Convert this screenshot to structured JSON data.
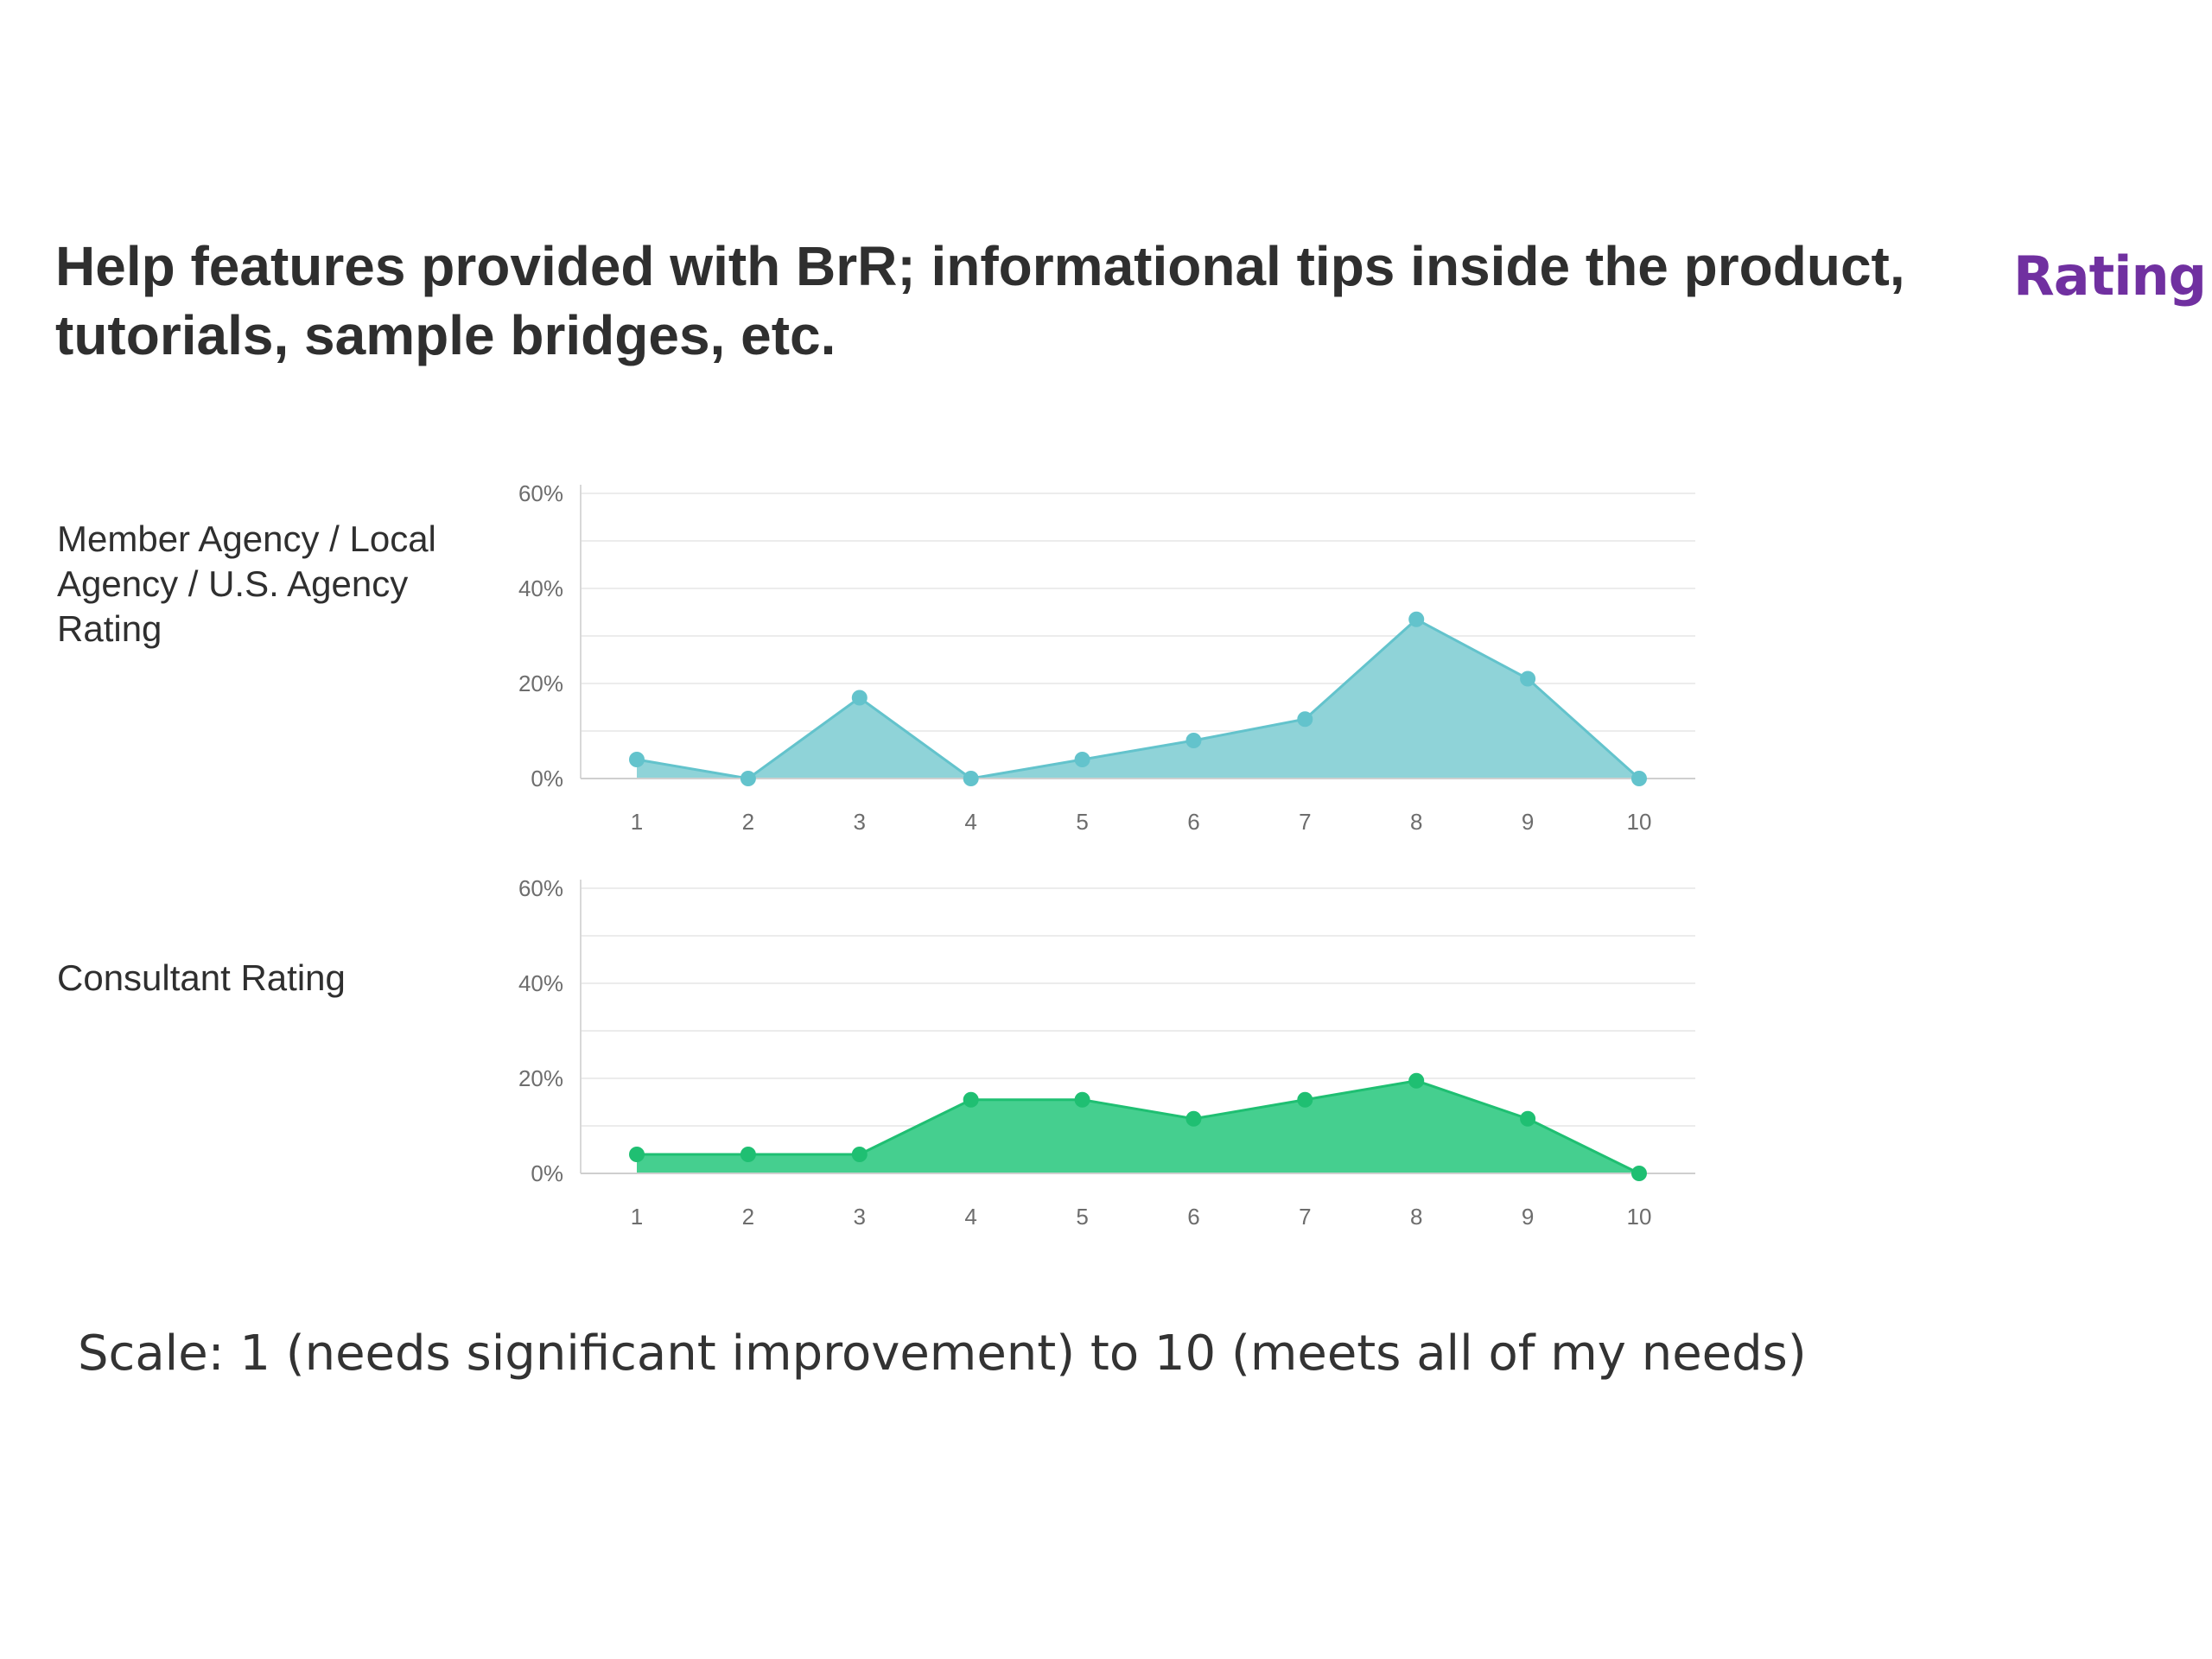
{
  "slide": {
    "title": "Help features provided with BrR; informational tips inside the product, tutorials, sample bridges, etc.",
    "rating_heading": "Rating",
    "scale_note": "Scale: 1 (needs significant improvement) to 10 (meets all of my needs)"
  },
  "chart_data": [
    {
      "type": "area",
      "row_label": "Member Agency / Local Agency / U.S. Agency Rating",
      "x": [
        "1",
        "2",
        "3",
        "4",
        "5",
        "6",
        "7",
        "8",
        "9",
        "10"
      ],
      "values": [
        4,
        0,
        17,
        0,
        4,
        8,
        12.5,
        33.5,
        21,
        0
      ],
      "ylim": [
        0,
        60
      ],
      "yticks": [
        "0%",
        "20%",
        "40%",
        "60%"
      ],
      "grid": true,
      "color": "#8fd3d8",
      "line_color": "#63c3cc"
    },
    {
      "type": "area",
      "row_label": "Consultant Rating",
      "x": [
        "1",
        "2",
        "3",
        "4",
        "5",
        "6",
        "7",
        "8",
        "9",
        "10"
      ],
      "values": [
        4,
        4,
        4,
        15.5,
        15.5,
        11.5,
        15.5,
        19.5,
        11.5,
        0
      ],
      "ylim": [
        0,
        60
      ],
      "yticks": [
        "0%",
        "20%",
        "40%",
        "60%"
      ],
      "grid": true,
      "color": "#45cf8f",
      "line_color": "#1fbf72"
    }
  ]
}
